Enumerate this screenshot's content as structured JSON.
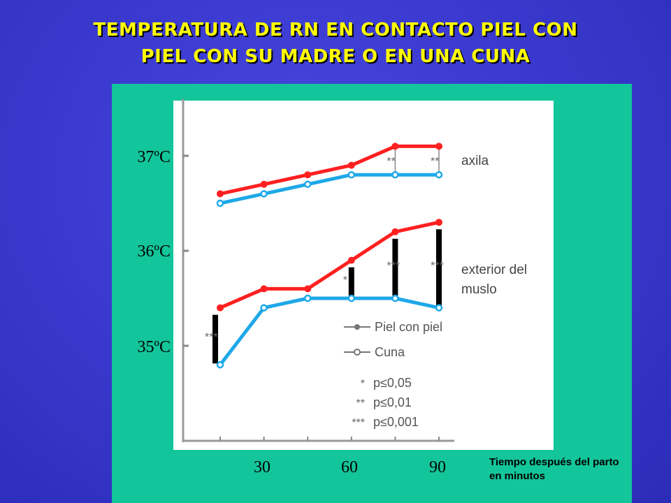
{
  "title_line1": "TEMPERATURA DE RN EN CONTACTO PIEL CON",
  "title_line2": "PIEL CON SU MADRE O EN UNA CUNA",
  "colors": {
    "background": "#3a3ad0",
    "title": "#ffff00",
    "panel": "#13c59a",
    "piel_con_piel": "#ff2020",
    "cuna": "#1ea8e8"
  },
  "chart_data": {
    "type": "line",
    "x": [
      15,
      30,
      45,
      60,
      75,
      90
    ],
    "x_ticks": [
      "30",
      "60",
      "90"
    ],
    "y_ticks": [
      "37ºC",
      "36ºC",
      "35ºC"
    ],
    "ylim": [
      34.0,
      37.6
    ],
    "xlabel": "Tiempo después del parto en minutos",
    "groups": [
      {
        "label": "axila",
        "series": [
          {
            "name": "Piel con piel",
            "values": [
              36.6,
              36.7,
              36.8,
              36.9,
              37.1,
              37.1
            ]
          },
          {
            "name": "Cuna",
            "values": [
              36.5,
              36.6,
              36.7,
              36.8,
              36.8,
              36.8
            ]
          }
        ],
        "significance": [
          null,
          null,
          null,
          null,
          "**",
          "**"
        ]
      },
      {
        "label_lines": [
          "exterior del",
          "muslo"
        ],
        "series": [
          {
            "name": "Piel con piel",
            "values": [
              35.4,
              35.6,
              35.6,
              35.9,
              36.2,
              36.3
            ]
          },
          {
            "name": "Cuna",
            "values": [
              34.8,
              35.4,
              35.5,
              35.5,
              35.5,
              35.4
            ]
          }
        ],
        "significance": [
          "***",
          null,
          null,
          "*",
          "***",
          "***"
        ]
      }
    ],
    "legend": [
      {
        "name": "Piel con piel",
        "marker": "filled"
      },
      {
        "name": "Cuna",
        "marker": "open"
      }
    ],
    "significance_key": [
      {
        "symbol": "*",
        "text": "p≤0,05"
      },
      {
        "symbol": "**",
        "text": "p≤0,01"
      },
      {
        "symbol": "***",
        "text": "p≤0,001"
      }
    ]
  }
}
